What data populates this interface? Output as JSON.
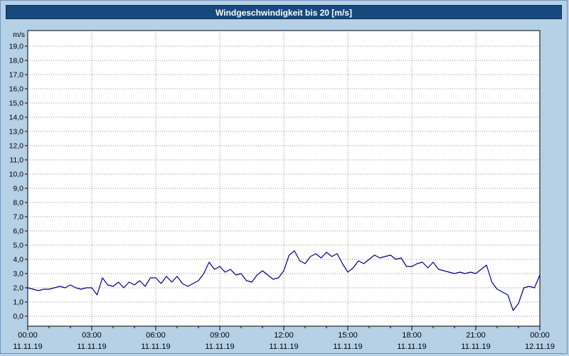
{
  "window": {
    "title": "Windgeschwindigkeit bis 20 [m/s]"
  },
  "chart_data": {
    "type": "line",
    "title": "Windgeschwindigkeit bis 20 [m/s]",
    "ylabel": "m/s",
    "xlabel": "",
    "ylim": [
      0,
      20
    ],
    "grid": true,
    "legend": "none",
    "line_color": "#000080",
    "grid_color": "#909090",
    "background_color": "#b6d0e6",
    "plot_background": "#ffffff",
    "titlebar_color": "#17497d",
    "ytick_step": 1,
    "ytick_labels": [
      "0,0",
      "1,0",
      "2,0",
      "3,0",
      "4,0",
      "5,0",
      "6,0",
      "7,0",
      "8,0",
      "9,0",
      "10,0",
      "11,0",
      "12,0",
      "13,0",
      "14,0",
      "15,0",
      "16,0",
      "17,0",
      "18,0",
      "19,0"
    ],
    "xticks": [
      {
        "hour": 0,
        "time": "00:00",
        "date": "11.11.19"
      },
      {
        "hour": 3,
        "time": "03:00",
        "date": "11.11.19"
      },
      {
        "hour": 6,
        "time": "06:00",
        "date": "11.11.19"
      },
      {
        "hour": 9,
        "time": "09:00",
        "date": "11.11.19"
      },
      {
        "hour": 12,
        "time": "12:00",
        "date": "11.11.19"
      },
      {
        "hour": 15,
        "time": "15:00",
        "date": "11.11.19"
      },
      {
        "hour": 18,
        "time": "18:00",
        "date": "11.11.19"
      },
      {
        "hour": 21,
        "time": "21:00",
        "date": "11.11.19"
      },
      {
        "hour": 24,
        "time": "00:00",
        "date": "12.11.19"
      }
    ],
    "x_start_hour": 0,
    "x_step_hours": 0.25,
    "values": [
      2.0,
      1.9,
      1.8,
      1.9,
      1.9,
      2.0,
      2.1,
      2.0,
      2.2,
      2.0,
      1.9,
      2.0,
      2.0,
      1.5,
      2.7,
      2.2,
      2.1,
      2.4,
      2.0,
      2.4,
      2.2,
      2.5,
      2.1,
      2.7,
      2.7,
      2.3,
      2.8,
      2.4,
      2.8,
      2.3,
      2.1,
      2.3,
      2.5,
      3.0,
      3.8,
      3.3,
      3.5,
      3.1,
      3.3,
      2.9,
      3.0,
      2.5,
      2.4,
      2.9,
      3.2,
      2.9,
      2.6,
      2.7,
      3.2,
      4.3,
      4.6,
      3.9,
      3.7,
      4.2,
      4.4,
      4.1,
      4.5,
      4.2,
      4.4,
      3.7,
      3.1,
      3.4,
      3.9,
      3.7,
      4.0,
      4.3,
      4.1,
      4.2,
      4.3,
      4.0,
      4.1,
      3.5,
      3.5,
      3.7,
      3.8,
      3.4,
      3.8,
      3.3,
      3.2,
      3.1,
      3.0,
      3.1,
      3.0,
      3.1,
      3.0,
      3.3,
      3.6,
      2.4,
      1.9,
      1.7,
      1.5,
      0.4,
      0.9,
      2.0,
      2.1,
      2.0,
      2.9
    ]
  }
}
